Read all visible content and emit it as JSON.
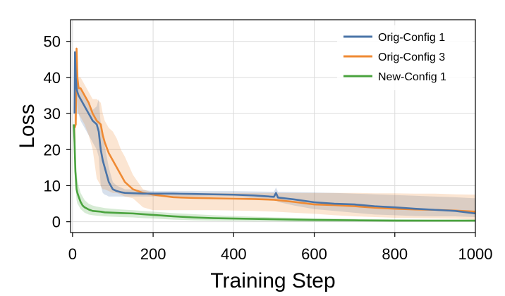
{
  "chart_data": {
    "type": "line",
    "title": "",
    "xlabel": "Training Step",
    "ylabel": "Loss",
    "xlim": [
      -5,
      1000
    ],
    "ylim": [
      -3,
      56
    ],
    "xticks": [
      0,
      200,
      400,
      600,
      800,
      1000
    ],
    "yticks": [
      0,
      10,
      20,
      30,
      40,
      50
    ],
    "grid": true,
    "legend": "top-right",
    "series": [
      {
        "name": "Orig-Config 1",
        "color": "#4a74a8",
        "x": [
          5,
          6,
          8,
          10,
          12,
          15,
          20,
          30,
          40,
          50,
          60,
          65,
          70,
          75,
          80,
          85,
          90,
          100,
          110,
          120,
          130,
          150,
          175,
          200,
          250,
          300,
          350,
          400,
          450,
          500,
          505,
          510,
          550,
          600,
          650,
          700,
          750,
          800,
          850,
          900,
          950,
          1000
        ],
        "y": [
          30,
          47,
          40,
          37,
          36,
          35,
          34,
          32,
          30,
          28,
          27,
          25,
          20,
          17,
          15,
          13,
          11,
          9,
          8.5,
          8.2,
          8,
          7.9,
          7.8,
          7.8,
          7.8,
          7.7,
          7.6,
          7.5,
          7.3,
          6.9,
          8,
          6.7,
          6.2,
          5.4,
          5,
          4.8,
          4.3,
          4,
          3.6,
          3.3,
          3,
          2.3
        ],
        "band_lower": [
          15,
          30,
          30,
          30,
          30,
          30,
          28,
          26,
          24,
          22,
          20,
          18,
          10,
          8,
          7.5,
          7.3,
          7,
          7,
          7,
          7,
          7,
          7,
          7,
          7,
          7,
          7,
          7,
          7,
          6.5,
          6,
          6,
          5.5,
          4.5,
          3.5,
          3,
          2.5,
          2,
          1.8,
          1.6,
          1.5,
          1.5,
          1.3
        ],
        "band_upper": [
          40,
          48,
          45,
          42,
          40,
          38,
          37,
          35,
          33,
          31,
          32,
          34,
          27,
          24,
          21,
          18,
          15,
          11,
          10,
          9.5,
          9,
          9,
          8.8,
          8.5,
          8.5,
          8.5,
          8.5,
          8.5,
          8.4,
          8.3,
          9.5,
          8.3,
          8.2,
          8.1,
          8,
          7.8,
          7.6,
          7.4,
          7.2,
          7,
          6.8,
          6.5
        ]
      },
      {
        "name": "Orig-Config 3",
        "color": "#ef8a33",
        "x": [
          5,
          8,
          10,
          12,
          14,
          15,
          20,
          30,
          40,
          50,
          60,
          70,
          75,
          80,
          90,
          100,
          110,
          120,
          130,
          150,
          175,
          200,
          250,
          300,
          350,
          400,
          450,
          500,
          550,
          600,
          650,
          700,
          750,
          800,
          850,
          900,
          950,
          1000
        ],
        "y": [
          26,
          27,
          48,
          40,
          38,
          37,
          37,
          35,
          33,
          30,
          28,
          27,
          24,
          22,
          19,
          17,
          15,
          13,
          11,
          9,
          8,
          7.5,
          6.8,
          6.6,
          6.5,
          6.4,
          6.3,
          6.1,
          5.5,
          4.8,
          4.6,
          4.3,
          3.9,
          3.6,
          3.4,
          3.3,
          3.1,
          2.8
        ],
        "band_lower": [
          20,
          22,
          35,
          32,
          30,
          30,
          29,
          27,
          24,
          20,
          12,
          10,
          9,
          9,
          8.5,
          8,
          8,
          7.5,
          7,
          6.5,
          4,
          3.2,
          3.2,
          3.2,
          3.2,
          3.1,
          3,
          2.8,
          2.5,
          2.2,
          1.8,
          1.5,
          1.3,
          1.1,
          1,
          0.9,
          0.8,
          0.6
        ],
        "band_upper": [
          30,
          32,
          49,
          44,
          42,
          40,
          40,
          38,
          36,
          34,
          34,
          33,
          30,
          28,
          26,
          25,
          23,
          20,
          18,
          13,
          9,
          8,
          8,
          8,
          8,
          8,
          8,
          8,
          8,
          8,
          8,
          8,
          7.9,
          7.9,
          7.8,
          7.8,
          7.6,
          7.5
        ]
      },
      {
        "name": "New-Config 1",
        "color": "#4aa33e",
        "x": [
          3,
          5,
          7,
          10,
          12,
          15,
          20,
          25,
          30,
          40,
          50,
          60,
          70,
          80,
          100,
          120,
          150,
          175,
          200,
          250,
          300,
          350,
          400,
          450,
          500,
          550,
          600,
          700,
          800,
          900,
          1000
        ],
        "y": [
          27,
          22,
          14,
          9,
          8,
          7,
          5.5,
          4.5,
          4,
          3.4,
          3,
          2.9,
          2.8,
          2.6,
          2.5,
          2.4,
          2.3,
          2.1,
          1.9,
          1.5,
          1.2,
          1,
          0.9,
          0.8,
          0.7,
          0.6,
          0.5,
          0.4,
          0.3,
          0.3,
          0.3
        ],
        "band_lower": [
          22,
          17,
          10,
          6,
          5,
          4.5,
          3.5,
          3,
          2.5,
          2,
          1.8,
          1.7,
          1.6,
          1.5,
          1.4,
          1.3,
          1.2,
          1,
          0.9,
          0.6,
          0.4,
          0.3,
          0.2,
          0.1,
          0.1,
          0,
          0,
          0,
          0,
          0,
          0
        ],
        "band_upper": [
          28,
          26,
          20,
          14,
          12,
          10,
          8,
          7,
          6,
          5,
          4.5,
          4.2,
          4,
          3.8,
          3.6,
          3.4,
          3.2,
          3,
          2.8,
          2.4,
          2.1,
          1.8,
          1.6,
          1.4,
          1.2,
          1.1,
          1,
          0.8,
          0.7,
          0.6,
          0.6
        ]
      }
    ]
  }
}
